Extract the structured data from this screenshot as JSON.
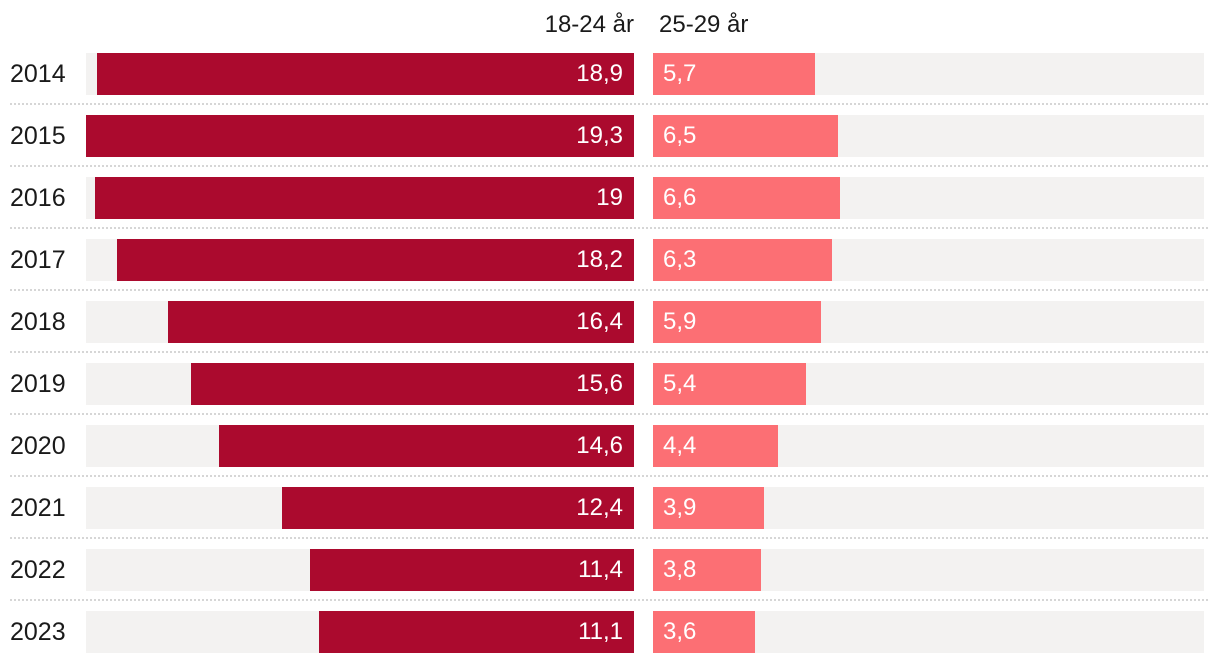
{
  "header": {
    "series1_label": "18-24 år",
    "series2_label": "25-29 år"
  },
  "chart_data": {
    "type": "bar",
    "orientation": "horizontal",
    "title": "",
    "categories": [
      "2014",
      "2015",
      "2016",
      "2017",
      "2018",
      "2019",
      "2020",
      "2021",
      "2022",
      "2023"
    ],
    "series": [
      {
        "name": "18-24 år",
        "values": [
          18.9,
          19.3,
          19,
          18.2,
          16.4,
          15.6,
          14.6,
          12.4,
          11.4,
          11.1
        ],
        "value_labels": [
          "18,9",
          "19,3",
          "19",
          "18,2",
          "16,4",
          "15,6",
          "14,6",
          "12,4",
          "11,4",
          "11,1"
        ],
        "color": "#ab0a2e",
        "bar_alignment": "right"
      },
      {
        "name": "25-29 år",
        "values": [
          5.7,
          6.5,
          6.6,
          6.3,
          5.9,
          5.4,
          4.4,
          3.9,
          3.8,
          3.6
        ],
        "value_labels": [
          "5,7",
          "6,5",
          "6,6",
          "6,3",
          "5,9",
          "5,4",
          "4,4",
          "3,9",
          "3,8",
          "3,6"
        ],
        "color": "#fc6f74",
        "bar_alignment": "left"
      }
    ],
    "xmax": 19.3,
    "xlabel": "",
    "ylabel": "",
    "legend_position": "top",
    "grid": "dotted-row-separators",
    "track_color": "#f3f2f1",
    "separator_color": "#d6d6d6",
    "label_color": "#1a1a1a",
    "value_label_color": "#ffffff"
  }
}
